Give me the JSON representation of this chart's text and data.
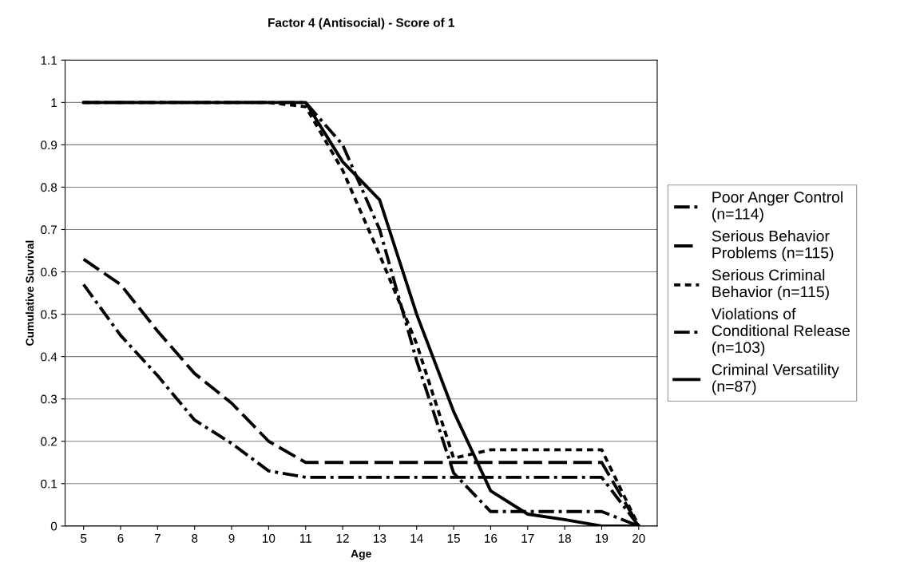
{
  "chart_data": {
    "type": "line",
    "title": "Factor 4 (Antisocial) - Score of 1",
    "xlabel": "Age",
    "ylabel": "Cumulative Survival",
    "categories": [
      "5",
      "6",
      "7",
      "8",
      "9",
      "10",
      "11",
      "12",
      "13",
      "14",
      "15",
      "16",
      "17",
      "18",
      "19",
      "20"
    ],
    "ylim": [
      0,
      1.1
    ],
    "yticks": [
      0,
      0.1,
      0.2,
      0.3,
      0.4,
      0.5,
      0.6,
      0.7,
      0.8,
      0.9,
      1,
      1.1
    ],
    "grid": "y",
    "legend": "right",
    "marker": "none",
    "series": [
      {
        "name": "Poor Anger Control\n(n=114)",
        "color": "#000000",
        "line_style": "dashdot",
        "values": [
          1,
          1,
          1,
          1,
          1,
          1,
          1,
          0.9,
          0.7,
          0.39,
          0.125,
          0.034,
          0.034,
          0.034,
          0.034,
          0
        ]
      },
      {
        "name": "Serious Behavior\nProblems (n=115)",
        "color": "#000000",
        "line_style": "dashed",
        "values": [
          0.63,
          0.57,
          0.46,
          0.36,
          0.29,
          0.2,
          0.15,
          0.15,
          0.15,
          0.15,
          0.15,
          0.15,
          0.15,
          0.15,
          0.15,
          0
        ]
      },
      {
        "name": "Serious Criminal\nBehavior (n=115)",
        "color": "#000000",
        "line_style": "dotted",
        "values": [
          1,
          1,
          1,
          1,
          1,
          1,
          0.99,
          0.84,
          0.64,
          0.43,
          0.16,
          0.18,
          0.18,
          0.18,
          0.18,
          0
        ]
      },
      {
        "name": "Violations of\nConditional Release\n(n=103)",
        "color": "#000000",
        "line_style": "dashdot",
        "values": [
          0.57,
          0.45,
          0.355,
          0.25,
          0.195,
          0.13,
          0.115,
          0.115,
          0.115,
          0.115,
          0.115,
          0.115,
          0.115,
          0.115,
          0.115,
          0
        ]
      },
      {
        "name": "Criminal Versatility\n(n=87)",
        "color": "#000000",
        "line_style": "solid",
        "values": [
          1,
          1,
          1,
          1,
          1,
          1,
          1,
          0.86,
          0.77,
          0.5,
          0.27,
          0.083,
          0.028,
          0.015,
          0.0,
          0
        ]
      }
    ]
  }
}
